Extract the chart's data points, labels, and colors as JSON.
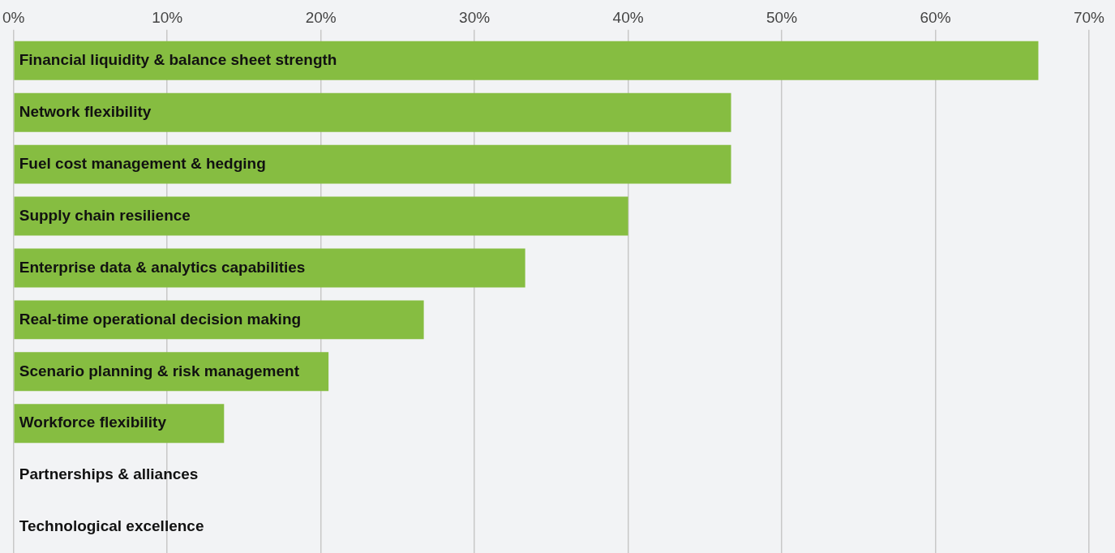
{
  "chart_data": {
    "type": "bar",
    "orientation": "horizontal",
    "categories": [
      "Financial liquidity & balance sheet strength",
      "Network flexibility",
      "Fuel cost management & hedging",
      "Supply chain resilience",
      "Enterprise data & analytics capabilities",
      "Real-time operational decision making",
      "Scenario planning & risk management",
      "Workforce flexibility",
      "Partnerships & alliances",
      "Technological excellence"
    ],
    "values": [
      66.7,
      46.7,
      46.7,
      40,
      33.3,
      26.7,
      20.5,
      13.7,
      0,
      0
    ],
    "color": "#86bd41",
    "xlim": [
      0,
      70
    ],
    "xticks": [
      {
        "value": 0,
        "label": "0%"
      },
      {
        "value": 10,
        "label": "10%"
      },
      {
        "value": 20,
        "label": "20%"
      },
      {
        "value": 30,
        "label": "30%"
      },
      {
        "value": 40,
        "label": "40%"
      },
      {
        "value": 50,
        "label": "50%"
      },
      {
        "value": 60,
        "label": "60%"
      },
      {
        "value": 70,
        "label": "70%"
      }
    ],
    "grid": "x",
    "legend": false
  }
}
